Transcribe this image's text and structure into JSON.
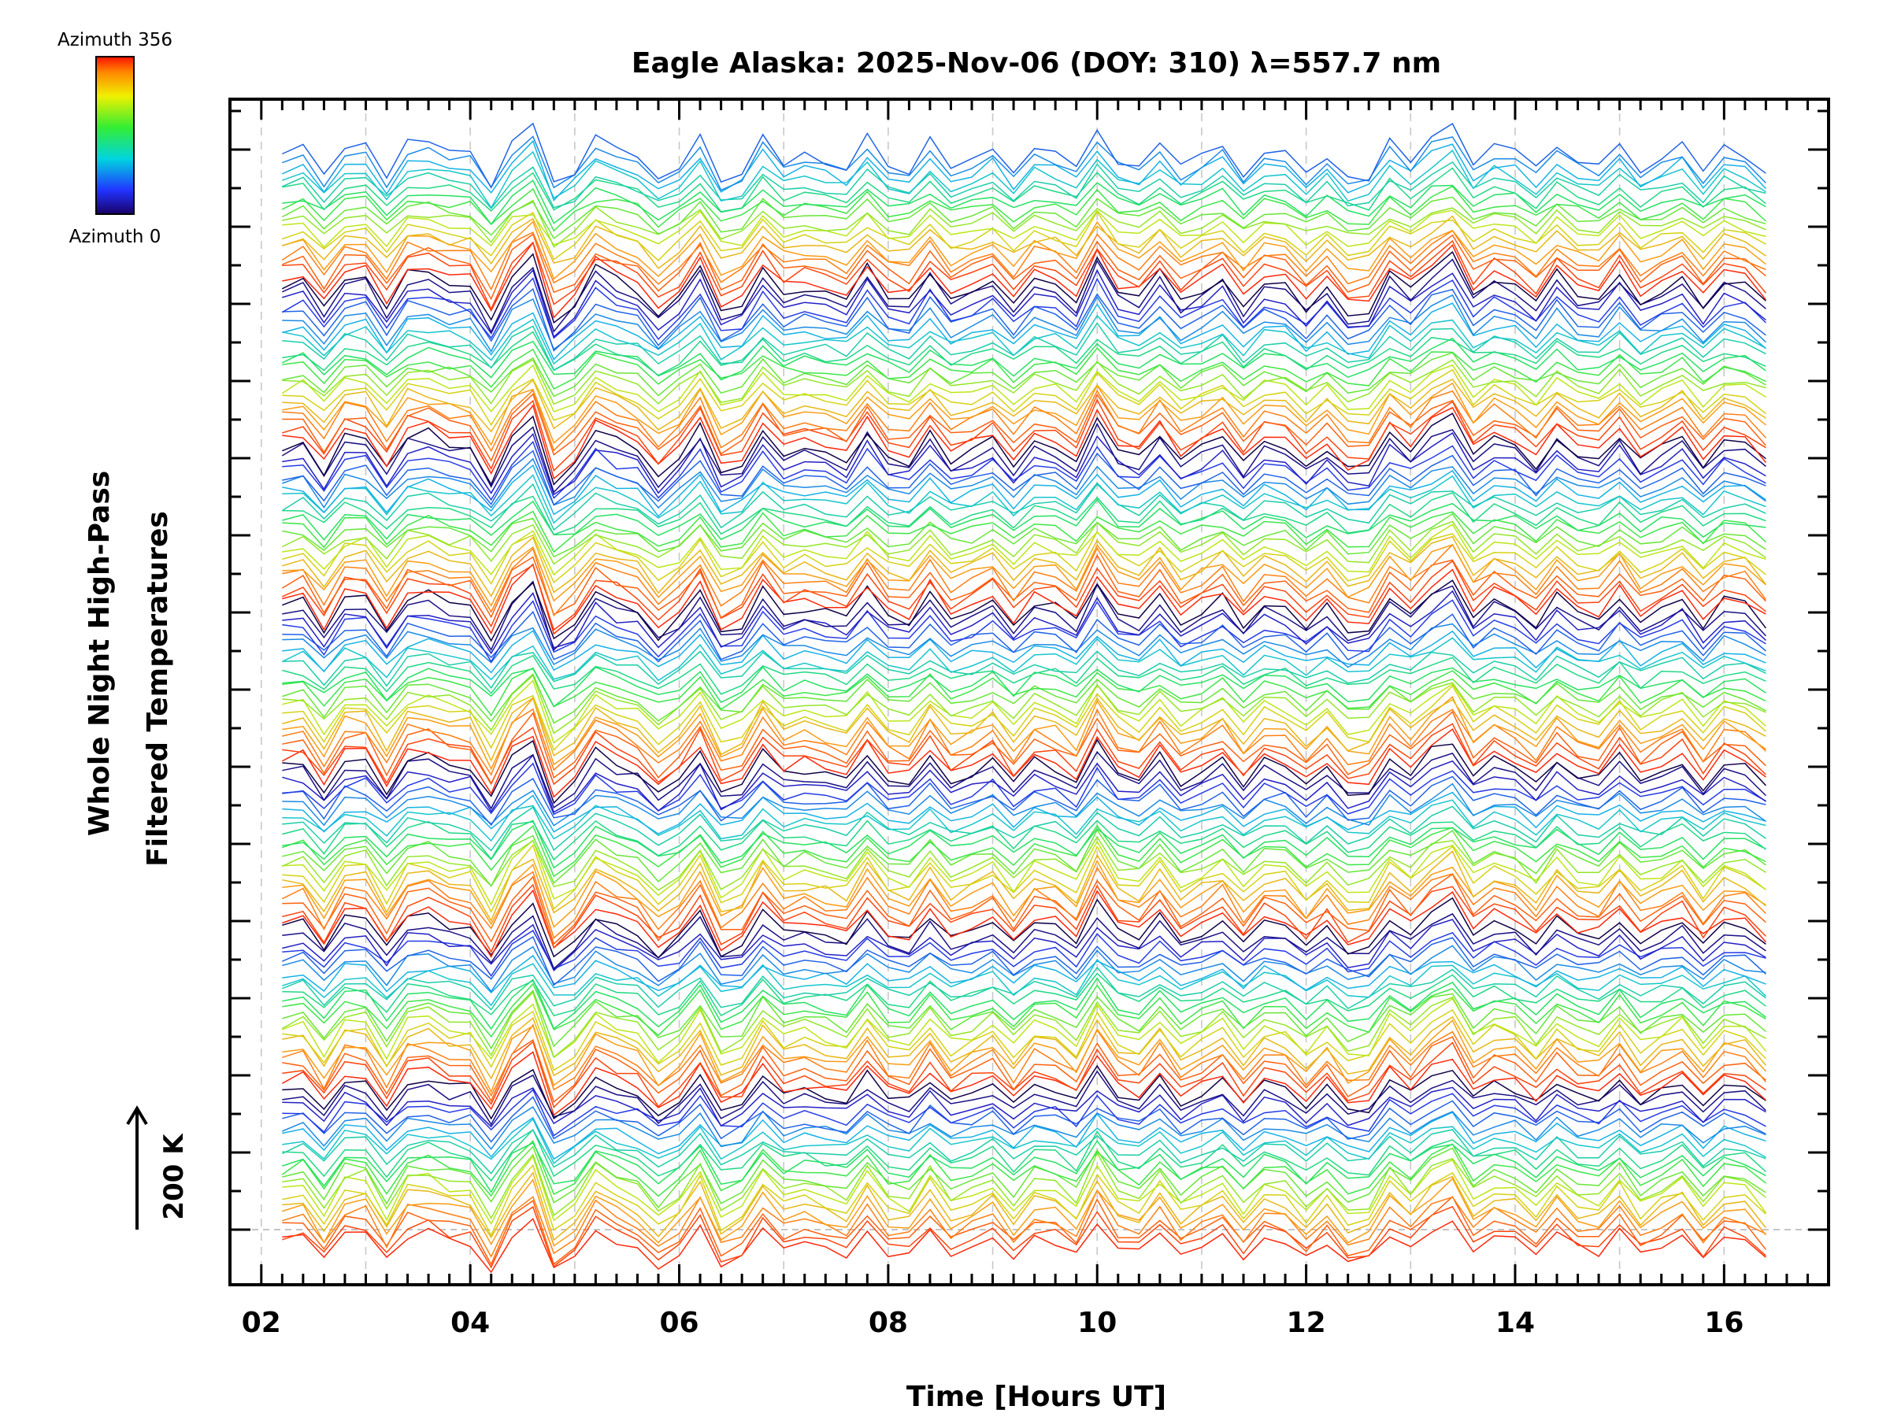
{
  "chart_data": {
    "type": "line",
    "title": "Eagle Alaska: 2025-Nov-06 (DOY: 310) λ=557.7 nm",
    "xlabel": "Time [Hours UT]",
    "ylabel_line1": "Whole Night High-Pass",
    "ylabel_line2": "Filtered Temperatures",
    "scale_label": "200 K",
    "xlim": [
      1.7,
      17.0
    ],
    "x_ticks": [
      "02",
      "04",
      "06",
      "08",
      "10",
      "12",
      "14",
      "16"
    ],
    "x_tick_values": [
      2,
      4,
      6,
      8,
      10,
      12,
      14,
      16
    ],
    "x_start": 2.2,
    "x_end": 16.5,
    "colorbar": {
      "top_label": "Azimuth 356",
      "bottom_label": "Azimuth 0",
      "azimuth_min": 0,
      "azimuth_max": 356
    },
    "grid": true,
    "num_traces": 150,
    "trace_spacing_k": 20,
    "series_note_x_step_hours": 0.2
  }
}
